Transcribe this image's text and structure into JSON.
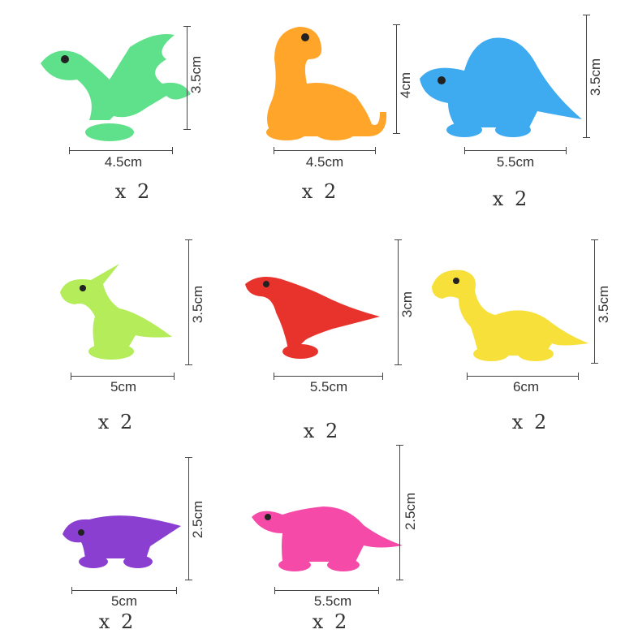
{
  "items": [
    {
      "name": "green-pterosaur",
      "color": "#5fe08a",
      "width": "4.5cm",
      "height": "3.5cm",
      "quantity": "x 2"
    },
    {
      "name": "orange-brachiosaurus",
      "color": "#ffa52a",
      "width": "4.5cm",
      "height": "4cm",
      "quantity": "x 2"
    },
    {
      "name": "blue-dimetrodon",
      "color": "#3eaaf0",
      "width": "5.5cm",
      "height": "3.5cm",
      "quantity": "x 2"
    },
    {
      "name": "lime-parasaurolophus",
      "color": "#b4ec5a",
      "width": "5cm",
      "height": "3.5cm",
      "quantity": "x 2"
    },
    {
      "name": "red-raptor",
      "color": "#e8322c",
      "width": "5.5cm",
      "height": "3cm",
      "quantity": "x 2"
    },
    {
      "name": "yellow-brontosaurus",
      "color": "#f7e03a",
      "width": "6cm",
      "height": "3.5cm",
      "quantity": "x 2"
    },
    {
      "name": "purple-triceratops",
      "color": "#8a3fd0",
      "width": "5cm",
      "height": "2.5cm",
      "quantity": "x 2"
    },
    {
      "name": "pink-stegosaurus",
      "color": "#f54aa8",
      "width": "5.5cm",
      "height": "2.5cm",
      "quantity": "x 2"
    }
  ]
}
